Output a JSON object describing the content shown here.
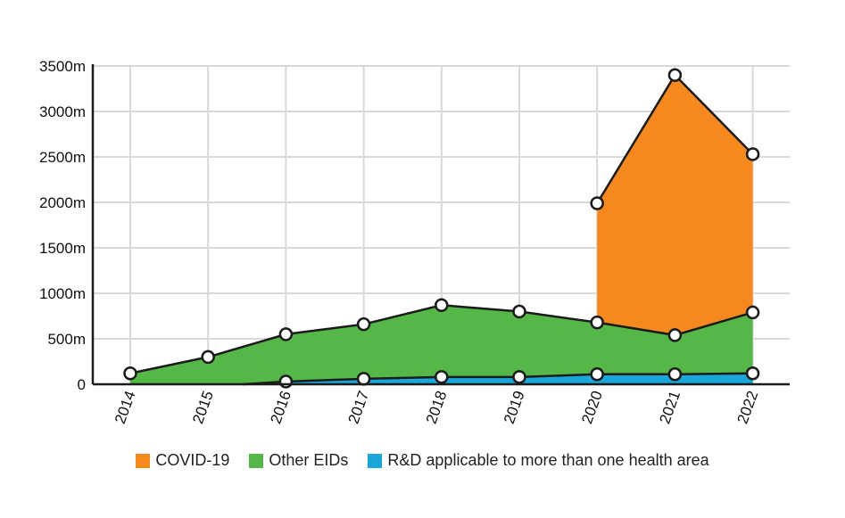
{
  "chart_data": {
    "type": "area",
    "title": "",
    "xlabel": "",
    "ylabel": "",
    "categories": [
      "2014",
      "2015",
      "2016",
      "2017",
      "2018",
      "2019",
      "2020",
      "2021",
      "2022"
    ],
    "y_ticks": [
      "0",
      "500m",
      "1000m",
      "1500m",
      "2000m",
      "2500m",
      "3000m",
      "3500m"
    ],
    "y_tick_values": [
      0,
      500,
      1000,
      1500,
      2000,
      2500,
      3000,
      3500
    ],
    "ylim": [
      0,
      3500
    ],
    "stacked": true,
    "grid": true,
    "legend_position": "bottom",
    "series": [
      {
        "name": "R&D applicable to more than one health area",
        "color": "#1aa6d8",
        "values": [
          0,
          0,
          30,
          60,
          80,
          80,
          110,
          110,
          120
        ]
      },
      {
        "name": "Other EIDs",
        "color": "#55b748",
        "values": [
          120,
          300,
          520,
          600,
          790,
          720,
          570,
          430,
          670
        ]
      },
      {
        "name": "COVID-19",
        "color": "#f5891f",
        "values": [
          null,
          null,
          null,
          null,
          null,
          null,
          1310,
          2860,
          1740
        ]
      }
    ],
    "totals": [
      120,
      300,
      550,
      660,
      870,
      800,
      1990,
      3400,
      2530
    ],
    "other_eids_top": [
      120,
      300,
      550,
      660,
      870,
      800,
      680,
      540,
      790
    ],
    "rd_top": [
      null,
      null,
      30,
      60,
      80,
      80,
      110,
      110,
      120
    ]
  },
  "legend": [
    {
      "label": "COVID-19",
      "color": "#f5891f",
      "icon": "orange-square"
    },
    {
      "label": "Other EIDs",
      "color": "#55b748",
      "icon": "green-square"
    },
    {
      "label": "R&D applicable to more than one health area",
      "color": "#1aa6d8",
      "icon": "blue-square"
    }
  ]
}
